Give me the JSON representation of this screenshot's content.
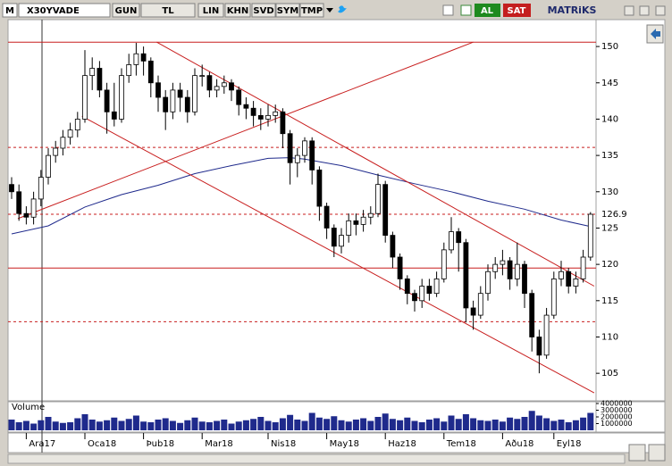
{
  "toolbar": {
    "logo": "M",
    "symbol": "X30YVADE",
    "buttons": [
      "GUN",
      "TL",
      "LIN",
      "KHN",
      "SVD",
      "SYM",
      "TMP"
    ],
    "buy": "AL",
    "sell": "SAT",
    "brand": "MATRiKS"
  },
  "chart_data": {
    "type": "candlestick",
    "categories": [
      null,
      null,
      "Ara17",
      null,
      null,
      null,
      null,
      null,
      null,
      null,
      "Oca18",
      null,
      null,
      null,
      null,
      null,
      null,
      null,
      "Þub18",
      null,
      null,
      null,
      null,
      null,
      null,
      null,
      "Mar18",
      null,
      null,
      null,
      null,
      null,
      null,
      null,
      null,
      "Nis18",
      null,
      null,
      null,
      null,
      null,
      null,
      null,
      "May18",
      null,
      null,
      null,
      null,
      null,
      null,
      null,
      "Haz18",
      null,
      null,
      null,
      null,
      null,
      null,
      null,
      "Tem18",
      null,
      null,
      null,
      null,
      null,
      null,
      null,
      "Aðu18",
      null,
      null,
      null,
      null,
      null,
      null,
      "Eyl18",
      null,
      null,
      null,
      null,
      null
    ],
    "open": [
      131,
      130,
      127,
      126.5,
      129,
      132,
      135,
      136,
      137.5,
      138.5,
      140,
      146,
      147,
      144,
      141,
      140,
      146,
      147.5,
      149,
      148,
      145,
      143,
      141,
      144,
      143,
      141,
      146,
      146,
      144,
      144.5,
      145,
      144,
      142,
      141.5,
      140.5,
      140,
      140.5,
      141,
      138,
      134,
      135,
      137,
      133,
      128,
      125,
      122.5,
      124,
      126,
      125.5,
      126.5,
      127,
      131,
      124,
      121,
      118,
      116,
      115,
      117,
      116,
      118,
      122,
      124.5,
      123,
      114,
      113,
      116,
      119,
      120,
      120.5,
      118,
      120,
      116,
      110,
      107.5,
      113,
      118,
      119,
      117,
      118,
      121
    ],
    "high": [
      132,
      131,
      128,
      130,
      133,
      136,
      137,
      138.5,
      139.5,
      141,
      149.5,
      148.5,
      148,
      145,
      145,
      147,
      149,
      150.5,
      150,
      148.5,
      146,
      144,
      145,
      145,
      144,
      147,
      147.5,
      146.5,
      145.5,
      146,
      145.5,
      144.5,
      143,
      142.5,
      141.5,
      142,
      142,
      141.5,
      138.5,
      136,
      137.5,
      137.5,
      133.5,
      128.5,
      125.5,
      125,
      127,
      127,
      127.5,
      128,
      132.5,
      131.5,
      124.5,
      121.5,
      118.5,
      116.5,
      118,
      118,
      119,
      123,
      126.5,
      125,
      123.5,
      115,
      117,
      120,
      121,
      122,
      121,
      123,
      120.5,
      116.5,
      111,
      114,
      119,
      120.5,
      119.5,
      119,
      122,
      127.2
    ],
    "low": [
      129,
      126,
      125.5,
      125.5,
      128,
      131,
      134,
      135,
      136.5,
      137.5,
      139.5,
      144,
      143,
      138,
      139,
      139.5,
      145,
      146,
      146,
      143,
      141,
      138.5,
      140,
      141,
      139.5,
      140.5,
      144.5,
      143,
      143,
      143.5,
      142.5,
      140.5,
      140,
      139,
      138.5,
      139,
      139.5,
      136,
      131,
      132,
      134,
      131,
      126,
      123.5,
      121,
      121.5,
      123,
      124,
      124.5,
      125.5,
      126.5,
      123,
      119.5,
      116.5,
      114.5,
      113.5,
      114,
      115,
      115.5,
      117.5,
      121.5,
      119,
      112,
      111,
      112.5,
      115,
      118,
      118.5,
      116.5,
      117,
      114,
      108,
      105,
      107,
      112.5,
      117,
      116,
      116,
      117.5,
      120.5
    ],
    "close": [
      130,
      127,
      126.5,
      129,
      132,
      135,
      136,
      137.5,
      138.5,
      140,
      146,
      147,
      144,
      141,
      140,
      146,
      147.5,
      149,
      148,
      145,
      143,
      141,
      144,
      143,
      141,
      146,
      146,
      144,
      144.5,
      145,
      144,
      142,
      141.5,
      140.5,
      140,
      140.5,
      141,
      138,
      134,
      135,
      137,
      133,
      128,
      125,
      122.5,
      124,
      126,
      125.5,
      126.5,
      127,
      131,
      124,
      121,
      118,
      116,
      115,
      117,
      116,
      118,
      122,
      124.5,
      123,
      114,
      113,
      116,
      119,
      120,
      120.5,
      118,
      120,
      116,
      110,
      107.5,
      113,
      118,
      119,
      117,
      118,
      121,
      126.9
    ],
    "moving_average": {
      "color": "#1f2a8c",
      "x": [
        0,
        5,
        10,
        15,
        20,
        25,
        30,
        35,
        38,
        40,
        45,
        50,
        55,
        60,
        65,
        70,
        75,
        79
      ],
      "values": [
        124.2,
        125.3,
        127.9,
        129.6,
        130.9,
        132.5,
        133.6,
        134.6,
        134.7,
        134.5,
        133.6,
        132.3,
        131.1,
        130,
        128.7,
        127.6,
        126.1,
        125.2
      ]
    },
    "trend_lines": {
      "color": "#c81e1e",
      "lines": [
        {
          "x": [
            0.85,
            63
          ],
          "values": [
            126.3,
            150.6
          ]
        },
        {
          "x": [
            19.8,
            79.5
          ],
          "values": [
            150.6,
            117
          ]
        },
        {
          "x": [
            9.6,
            79.5
          ],
          "values": [
            140.4,
            102.3
          ]
        }
      ]
    },
    "horizontal_lines": {
      "color": "#c81e1e",
      "lines": [
        {
          "value": 150.6,
          "style": "solid"
        },
        {
          "value": 136.1,
          "style": "dashed"
        },
        {
          "value": 126.9,
          "style": "dashed"
        },
        {
          "value": 119.5,
          "style": "solid"
        },
        {
          "value": 112.1,
          "style": "dashed"
        }
      ]
    },
    "ylim": [
      101.7,
      153.7
    ],
    "yticks": [
      105,
      110,
      115,
      120,
      125,
      130,
      135,
      140,
      145,
      150
    ],
    "volume": {
      "title": "Volume",
      "color": "#1f2a8c",
      "values": [
        1600000,
        1200000,
        1400000,
        1000000,
        1500000,
        2000000,
        1300000,
        1100000,
        1200000,
        1800000,
        2400000,
        1600000,
        1300000,
        1500000,
        1900000,
        1400000,
        1700000,
        2200000,
        1300000,
        1200000,
        1600000,
        1800000,
        1400000,
        1100000,
        1500000,
        1900000,
        1300000,
        1200000,
        1400000,
        1600000,
        1000000,
        1300000,
        1500000,
        1700000,
        2000000,
        1400000,
        1200000,
        1800000,
        2300000,
        1600000,
        1400000,
        2600000,
        1900000,
        1700000,
        2100000,
        1500000,
        1300000,
        1600000,
        1800000,
        1400000,
        2000000,
        2500000,
        1700000,
        1500000,
        1900000,
        1400000,
        1200000,
        1600000,
        1800000,
        1300000,
        2200000,
        1700000,
        2400000,
        1800000,
        1500000,
        1400000,
        1600000,
        1300000,
        1900000,
        1700000,
        2000000,
        2900000,
        2200000,
        1800000,
        1400000,
        1600000,
        1200000,
        1500000,
        1900000,
        2600000
      ],
      "ylim": [
        0,
        4000000
      ],
      "yticks": [
        1000000,
        2000000,
        3000000,
        4000000
      ]
    }
  }
}
